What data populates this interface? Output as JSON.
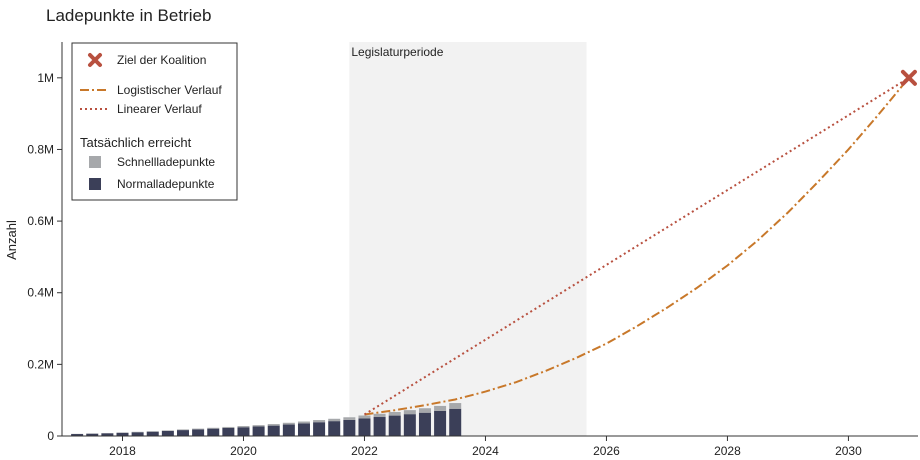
{
  "chart_data": {
    "type": "bar",
    "title": "Ladepunkte in Betrieb",
    "ylabel": "Anzahl",
    "xlabel": "",
    "xlim": [
      2017.0,
      2031.15
    ],
    "ylim": [
      0,
      1100000
    ],
    "x_ticks": [
      {
        "value": 2018,
        "label": "2018"
      },
      {
        "value": 2020,
        "label": "2020"
      },
      {
        "value": 2022,
        "label": "2022"
      },
      {
        "value": 2024,
        "label": "2024"
      },
      {
        "value": 2026,
        "label": "2026"
      },
      {
        "value": 2028,
        "label": "2028"
      },
      {
        "value": 2030,
        "label": "2030"
      }
    ],
    "y_ticks": [
      {
        "value": 0,
        "label": "0"
      },
      {
        "value": 200000,
        "label": "0.2M"
      },
      {
        "value": 400000,
        "label": "0.4M"
      },
      {
        "value": 600000,
        "label": "0.6M"
      },
      {
        "value": 800000,
        "label": "0.8M"
      },
      {
        "value": 1000000,
        "label": "1M"
      }
    ],
    "grid": false,
    "legislative_period": {
      "label": "Legislaturperiode",
      "start": 2021.75,
      "end": 2025.67,
      "color": "#f2f2f2"
    },
    "bars": {
      "x": [
        2017.25,
        2017.5,
        2017.75,
        2018.0,
        2018.25,
        2018.5,
        2018.75,
        2019.0,
        2019.25,
        2019.5,
        2019.75,
        2020.0,
        2020.25,
        2020.5,
        2020.75,
        2021.0,
        2021.25,
        2021.5,
        2021.75,
        2022.0,
        2022.25,
        2022.5,
        2022.75,
        2023.0,
        2023.25,
        2023.5
      ],
      "series": [
        {
          "name": "Normalladepunkte",
          "color": "#3b3f58",
          "values": [
            5500,
            6500,
            7500,
            9000,
            10500,
            12000,
            14000,
            16500,
            18500,
            20500,
            22500,
            24500,
            26500,
            29000,
            32000,
            35000,
            38500,
            41500,
            45000,
            49000,
            53000,
            57000,
            61000,
            65000,
            70000,
            76000
          ]
        },
        {
          "name": "Schnellladepunkte",
          "color": "#a6a8ab",
          "values": [
            500,
            700,
            900,
            1000,
            1200,
            1400,
            1600,
            1800,
            2100,
            2400,
            2800,
            3300,
            3800,
            4300,
            4900,
            5400,
            6000,
            6600,
            7300,
            8200,
            9000,
            10000,
            11200,
            12500,
            14000,
            16000
          ]
        }
      ]
    },
    "lines": [
      {
        "name": "Logistischer Verlauf",
        "color": "#c8782a",
        "style": "dashdot",
        "x": [
          2022.0,
          2022.5,
          2023.0,
          2023.5,
          2024.0,
          2024.5,
          2025.0,
          2025.5,
          2026.0,
          2026.5,
          2027.0,
          2027.5,
          2028.0,
          2028.5,
          2029.0,
          2029.5,
          2030.0,
          2030.5,
          2031.0
        ],
        "y": [
          60000,
          72000,
          86000,
          102000,
          124000,
          150000,
          182000,
          218000,
          258000,
          306000,
          358000,
          414000,
          476000,
          546000,
          624000,
          710000,
          800000,
          898000,
          1000000
        ]
      },
      {
        "name": "Linearer Verlauf",
        "color": "#b8503f",
        "style": "dotted",
        "x": [
          2022.0,
          2031.0
        ],
        "y": [
          60000,
          1000000
        ]
      }
    ],
    "target": {
      "name": "Ziel der Koalition",
      "x": 2031.0,
      "y": 1000000,
      "color": "#b8503f",
      "marker": "x"
    },
    "legend": {
      "position": "top-left",
      "group_title": "Tatsächlich erreicht",
      "entries": [
        {
          "label": "Ziel der Koalition",
          "kind": "marker-x",
          "color": "#b8503f"
        },
        {
          "label": "Logistischer Verlauf",
          "kind": "dashdot-line",
          "color": "#c8782a"
        },
        {
          "label": "Linearer Verlauf",
          "kind": "dotted-line",
          "color": "#b8503f"
        },
        {
          "label": "Schnellladepunkte",
          "kind": "square",
          "color": "#a6a8ab"
        },
        {
          "label": "Normalladepunkte",
          "kind": "square",
          "color": "#3b3f58"
        }
      ]
    }
  }
}
